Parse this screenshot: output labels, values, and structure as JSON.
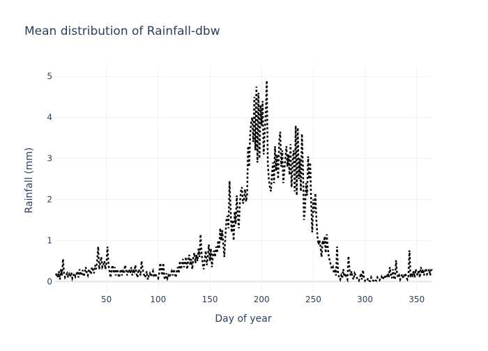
{
  "chart_data": {
    "type": "line",
    "title": "Mean distribution of Rainfall-dbw",
    "x_label": "Day of year",
    "y_label": "Rainfall (mm)",
    "color": "#000000",
    "dash": "dot",
    "grid": true,
    "xlim": [
      1,
      365
    ],
    "xticks": [
      50,
      100,
      150,
      200,
      250,
      300,
      350
    ],
    "ylim": [
      -0.25,
      5.25
    ],
    "yticks": [
      0,
      1,
      2,
      3,
      4,
      5
    ],
    "x": [
      1,
      2,
      3,
      4,
      5,
      6,
      7,
      8,
      9,
      10,
      11,
      12,
      13,
      14,
      15,
      16,
      17,
      18,
      19,
      20,
      21,
      22,
      23,
      24,
      25,
      26,
      27,
      28,
      29,
      30,
      31,
      32,
      33,
      34,
      35,
      36,
      37,
      38,
      39,
      40,
      41,
      42,
      43,
      44,
      45,
      46,
      47,
      48,
      49,
      50,
      51,
      52,
      53,
      54,
      55,
      56,
      57,
      58,
      59,
      60,
      61,
      62,
      63,
      64,
      65,
      66,
      67,
      68,
      69,
      70,
      71,
      72,
      73,
      74,
      75,
      76,
      77,
      78,
      79,
      80,
      81,
      82,
      83,
      84,
      85,
      86,
      87,
      88,
      89,
      90,
      91,
      92,
      93,
      94,
      95,
      96,
      97,
      98,
      99,
      100,
      101,
      102,
      103,
      104,
      105,
      106,
      107,
      108,
      109,
      110,
      111,
      112,
      113,
      114,
      115,
      116,
      117,
      118,
      119,
      120,
      121,
      122,
      123,
      124,
      125,
      126,
      127,
      128,
      129,
      130,
      131,
      132,
      133,
      134,
      135,
      136,
      137,
      138,
      139,
      140,
      141,
      142,
      143,
      144,
      145,
      146,
      147,
      148,
      149,
      150,
      151,
      152,
      153,
      154,
      155,
      156,
      157,
      158,
      159,
      160,
      161,
      162,
      163,
      164,
      165,
      166,
      167,
      168,
      169,
      170,
      171,
      172,
      173,
      174,
      175,
      176,
      177,
      178,
      179,
      180,
      181,
      182,
      183,
      184,
      185,
      186,
      187,
      188,
      189,
      190,
      191,
      192,
      193,
      194,
      195,
      196,
      197,
      198,
      199,
      200,
      201,
      202,
      203,
      204,
      205,
      206,
      207,
      208,
      209,
      210,
      211,
      212,
      213,
      214,
      215,
      216,
      217,
      218,
      219,
      220,
      221,
      222,
      223,
      224,
      225,
      226,
      227,
      228,
      229,
      230,
      231,
      232,
      233,
      234,
      235,
      236,
      237,
      238,
      239,
      240,
      241,
      242,
      243,
      244,
      245,
      246,
      247,
      248,
      249,
      250,
      251,
      252,
      253,
      254,
      255,
      256,
      257,
      258,
      259,
      260,
      261,
      262,
      263,
      264,
      265,
      266,
      267,
      268,
      269,
      270,
      271,
      272,
      273,
      274,
      275,
      276,
      277,
      278,
      279,
      280,
      281,
      282,
      283,
      284,
      285,
      286,
      287,
      288,
      289,
      290,
      291,
      292,
      293,
      294,
      295,
      296,
      297,
      298,
      299,
      300,
      301,
      302,
      303,
      304,
      305,
      306,
      307,
      308,
      309,
      310,
      311,
      312,
      313,
      314,
      315,
      316,
      317,
      318,
      319,
      320,
      321,
      322,
      323,
      324,
      325,
      326,
      327,
      328,
      329,
      330,
      331,
      332,
      333,
      334,
      335,
      336,
      337,
      338,
      339,
      340,
      341,
      342,
      343,
      344,
      345,
      346,
      347,
      348,
      349,
      350,
      351,
      352,
      353,
      354,
      355,
      356,
      357,
      358,
      359,
      360,
      361,
      362,
      363,
      364,
      365
    ],
    "values": [
      0.15,
      0.2,
      0.1,
      0.25,
      0.05,
      0.3,
      0.15,
      0.55,
      0.2,
      0.1,
      0.15,
      0.2,
      0.1,
      0.18,
      0.12,
      0.22,
      0.08,
      0.15,
      0.2,
      0.12,
      0.18,
      0.25,
      0.1,
      0.3,
      0.15,
      0.2,
      0.28,
      0.12,
      0.22,
      0.35,
      0.2,
      0.15,
      0.3,
      0.25,
      0.18,
      0.35,
      0.28,
      0.2,
      0.4,
      0.3,
      0.5,
      0.85,
      0.3,
      0.45,
      0.6,
      0.35,
      0.4,
      0.5,
      0.3,
      0.45,
      0.85,
      0.4,
      0.25,
      0.1,
      0.3,
      0.4,
      0.2,
      0.35,
      0.15,
      0.3,
      0.25,
      0.1,
      0.2,
      0.3,
      0.15,
      0.25,
      0.2,
      0.4,
      0.3,
      0.15,
      0.25,
      0.3,
      0.2,
      0.35,
      0.15,
      0.3,
      0.25,
      0.4,
      0.2,
      0.1,
      0.3,
      0.25,
      0.15,
      0.5,
      0.3,
      0.2,
      0.1,
      0.15,
      0.25,
      0.05,
      0.15,
      0.2,
      0.12,
      0.18,
      0.25,
      0.1,
      0.2,
      0.15,
      0.12,
      0.08,
      0.2,
      0.45,
      0.3,
      0.15,
      0.45,
      0.1,
      0.05,
      0.2,
      0.08,
      0.15,
      0.1,
      0.2,
      0.25,
      0.15,
      0.3,
      0.2,
      0.1,
      0.25,
      0.35,
      0.2,
      0.5,
      0.3,
      0.4,
      0.55,
      0.35,
      0.45,
      0.6,
      0.3,
      0.5,
      0.65,
      0.4,
      0.55,
      0.3,
      0.6,
      0.7,
      0.45,
      0.65,
      0.5,
      0.8,
      0.6,
      1.15,
      0.7,
      0.45,
      0.3,
      0.55,
      0.75,
      0.4,
      0.6,
      0.9,
      0.5,
      0.8,
      0.35,
      0.65,
      0.75,
      0.6,
      0.85,
      0.7,
      1.0,
      0.8,
      1.3,
      1.0,
      1.25,
      0.9,
      0.6,
      1.1,
      1.5,
      1.6,
      1.3,
      2.45,
      1.8,
      1.2,
      1.5,
      1.0,
      1.7,
      1.4,
      2.1,
      1.6,
      1.3,
      1.9,
      2.2,
      2.3,
      1.9,
      2.0,
      2.25,
      1.95,
      2.1,
      3.3,
      2.8,
      3.6,
      3.9,
      4.0,
      3.4,
      4.5,
      3.2,
      4.75,
      2.9,
      4.6,
      3.0,
      4.3,
      3.8,
      4.4,
      3.1,
      3.6,
      4.1,
      4.9,
      2.9,
      2.5,
      2.3,
      2.2,
      2.6,
      2.9,
      2.4,
      3.3,
      2.7,
      3.1,
      2.5,
      3.4,
      3.65,
      2.8,
      3.2,
      2.4,
      2.7,
      3.0,
      3.3,
      2.8,
      3.1,
      2.6,
      3.35,
      2.3,
      2.9,
      3.2,
      2.2,
      3.8,
      2.1,
      3.75,
      2.5,
      3.0,
      2.2,
      3.6,
      2.8,
      1.5,
      1.8,
      2.4,
      2.1,
      3.05,
      2.5,
      2.9,
      1.9,
      1.2,
      2.0,
      1.7,
      2.15,
      1.5,
      1.1,
      0.9,
      1.0,
      0.85,
      0.6,
      1.0,
      0.9,
      1.1,
      0.7,
      1.15,
      0.85,
      0.6,
      0.5,
      0.4,
      0.3,
      0.35,
      0.2,
      0.25,
      0.15,
      0.85,
      0.2,
      0.1,
      0.05,
      0.15,
      0.08,
      0.3,
      0.12,
      0.2,
      0.1,
      0.05,
      0.62,
      0.3,
      0.15,
      0.25,
      0.1,
      0.05,
      0.2,
      0.15,
      0.1,
      0.05,
      0.02,
      0.08,
      0.2,
      0.05,
      0.28,
      0.1,
      0.02,
      0.05,
      0.03,
      0.08,
      0.02,
      0.01,
      0.1,
      0.04,
      0.02,
      0.06,
      0.03,
      0.02,
      0.1,
      0.05,
      0.03,
      0.08,
      0.12,
      0.05,
      0.1,
      0.15,
      0.08,
      0.12,
      0.2,
      0.1,
      0.35,
      0.15,
      0.08,
      0.3,
      0.1,
      0.05,
      0.52,
      0.2,
      0.1,
      0.15,
      0.05,
      0.12,
      0.18,
      0.08,
      0.15,
      0.2,
      0.1,
      0.05,
      0.12,
      0.76,
      0.1,
      0.2,
      0.15,
      0.25,
      0.1,
      0.3,
      0.2,
      0.15,
      0.28,
      0.1,
      0.35,
      0.2,
      0.3,
      0.15,
      0.25,
      0.32,
      0.18,
      0.22,
      0.3,
      0.15,
      0.32,
      0.28
    ]
  }
}
